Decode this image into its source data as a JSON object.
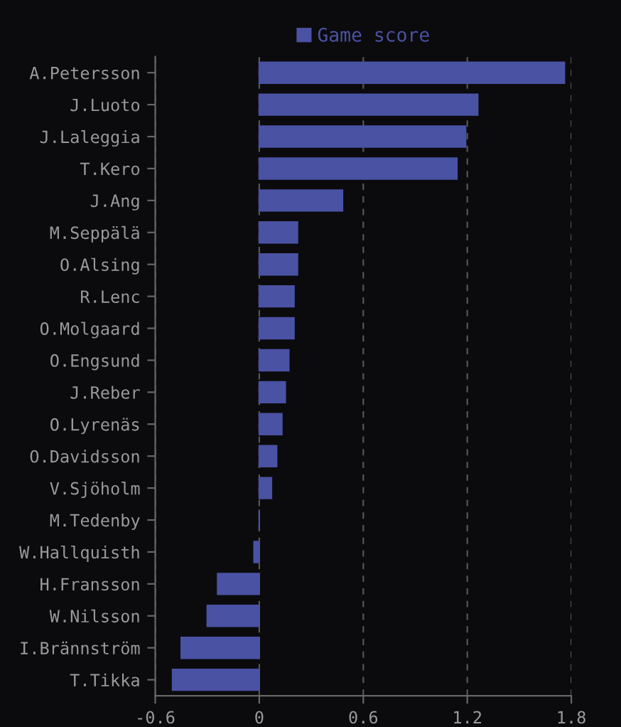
{
  "chart_data": {
    "type": "bar",
    "orientation": "horizontal",
    "categories": [
      "A.Petersson",
      "J.Luoto",
      "J.Laleggia",
      "T.Kero",
      "J.Ang",
      "M.Seppälä",
      "O.Alsing",
      "R.Lenc",
      "O.Molgaard",
      "O.Engsund",
      "J.Reber",
      "O.Lyrenäs",
      "O.Davidsson",
      "V.Sjöholm",
      "M.Tedenby",
      "W.Hallquisth",
      "H.Fransson",
      "W.Nilsson",
      "I.Brännström",
      "T.Tikka"
    ],
    "series": [
      {
        "name": "Game score",
        "color": "#4a52a3",
        "values": [
          1.76,
          1.26,
          1.19,
          1.14,
          0.48,
          0.22,
          0.22,
          0.2,
          0.2,
          0.17,
          0.15,
          0.13,
          0.1,
          0.07,
          0,
          -0.03,
          -0.24,
          -0.3,
          -0.45,
          -0.5
        ]
      }
    ],
    "xlim": [
      -0.6,
      1.8
    ],
    "xticks": [
      -0.6,
      0,
      0.6,
      1.2,
      1.8
    ],
    "grid": "x",
    "legend": "top"
  }
}
